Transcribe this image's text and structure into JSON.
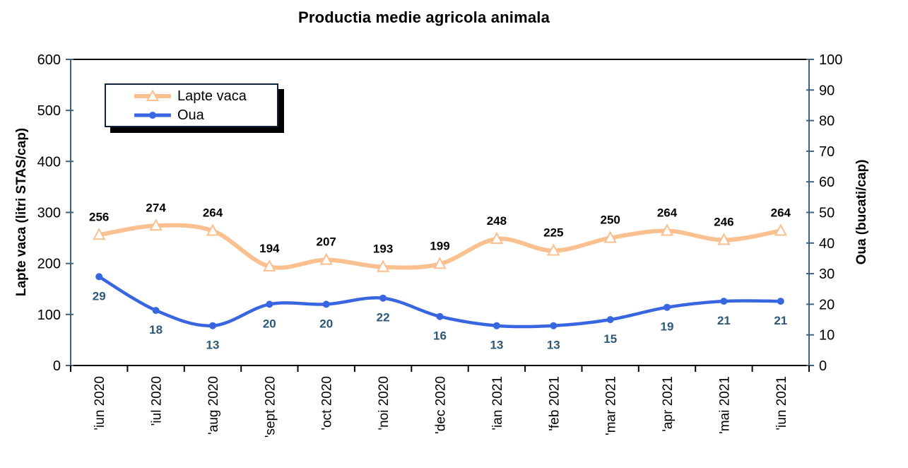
{
  "chart_data": {
    "type": "line",
    "title": "Productia medie agricola animala",
    "categories": [
      "'iun 2020",
      "'iul 2020",
      "'aug 2020",
      "'sept 2020",
      "'oct 2020",
      "'noi 2020",
      "'dec 2020",
      "'ian 2021",
      "'feb 2021",
      "'mar 2021",
      "'apr 2021",
      "'mai 2021",
      "'iun 2021"
    ],
    "series": [
      {
        "name": "Lapte vaca",
        "axis": "left",
        "values": [
          256,
          274,
          264,
          194,
          207,
          193,
          199,
          248,
          225,
          250,
          264,
          246,
          264
        ],
        "color": "#FAC090",
        "marker": "triangle",
        "marker_fill": "#FFFFFF",
        "label_color": "#000000",
        "label_position": "above"
      },
      {
        "name": "Oua",
        "axis": "right",
        "values": [
          29,
          18,
          13,
          20,
          20,
          22,
          16,
          13,
          13,
          15,
          19,
          21,
          21
        ],
        "color": "#3865E0",
        "marker": "circle",
        "marker_fill": "#3865E0",
        "label_color": "#2E5878",
        "label_position": "below"
      }
    ],
    "left_axis": {
      "label": "Lapte vaca (litri STAS/cap)",
      "min": 0,
      "max": 600,
      "step": 100
    },
    "right_axis": {
      "label": "Oua (bucati/cap)",
      "min": 0,
      "max": 100,
      "step": 10
    },
    "legend": {
      "position": "top-left",
      "entries": [
        "Lapte vaca",
        "Oua"
      ]
    },
    "grid": false,
    "smooth": true,
    "colors": {
      "value_axis_line": "#40607F",
      "category_axis_line": "#000000",
      "tick_label": "#000000",
      "background": "#FFFFFF"
    }
  }
}
